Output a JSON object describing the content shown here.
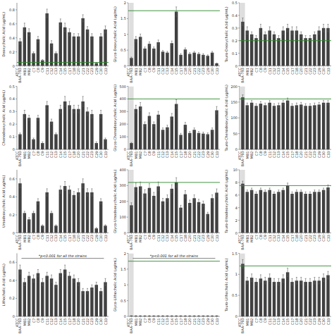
{
  "chart_data": [
    {
      "type": "bar",
      "y_label": "Deoxycholic Acid (µg/mL)",
      "grid": false,
      "color": "#404040",
      "error_color": "#606060",
      "categories": [
        "ATCC\nBAA-793",
        "MB1",
        "MB2",
        "C7",
        "C8",
        "C9",
        "C11",
        "C12",
        "C13",
        "C14",
        "C15",
        "C17",
        "C18",
        "C20",
        "C21",
        "C22",
        "C23",
        "C29",
        "C30",
        "C33"
      ],
      "values": [
        0.35,
        0.55,
        0.48,
        0.18,
        0.38,
        0.08,
        0.75,
        0.32,
        0.18,
        0.62,
        0.55,
        0.48,
        0.42,
        0.42,
        0.68,
        0.52,
        0.42,
        0.04,
        0.42,
        0.52
      ],
      "errors": [
        0.04,
        0.06,
        0.05,
        0.02,
        0.04,
        0.01,
        0.06,
        0.04,
        0.02,
        0.05,
        0.06,
        0.05,
        0.04,
        0.04,
        0.05,
        0.04,
        0.04,
        0.01,
        0.04,
        0.05
      ],
      "reference_line": {
        "value": 0.05,
        "color": "#2d8a2d"
      },
      "ylim": [
        0,
        0.9
      ],
      "yticks": [
        0,
        0.2,
        0.4,
        0.6,
        0.8
      ]
    },
    {
      "type": "bar",
      "y_label": "Glyco-Deoxycholic Acid (µg/mL)",
      "grid": false,
      "color": "#404040",
      "error_color": "#606060",
      "categories": [
        "ATCC\nBAA-793",
        "MB1",
        "MB2",
        "C7",
        "C8",
        "C9",
        "C11",
        "C12",
        "C13",
        "C14",
        "C15",
        "C17",
        "C18",
        "C20",
        "C21",
        "C22",
        "C23",
        "C29",
        "C30",
        "C33"
      ],
      "values": [
        0.25,
        0.85,
        0.92,
        0.55,
        0.7,
        0.55,
        0.75,
        0.45,
        0.42,
        0.72,
        1.72,
        0.35,
        0.52,
        0.38,
        0.42,
        0.38,
        0.35,
        0.32,
        0.42,
        0.08
      ],
      "errors": [
        0.03,
        0.08,
        0.09,
        0.05,
        0.06,
        0.05,
        0.07,
        0.04,
        0.04,
        0.07,
        0.15,
        0.04,
        0.05,
        0.04,
        0.04,
        0.04,
        0.04,
        0.03,
        0.04,
        0.01
      ],
      "reference_line": {
        "value": 1.75,
        "color": "#2d8a2d"
      },
      "shaded_category": {
        "category": "ATCC\nBAA-793",
        "color": "#d0d0d0"
      },
      "ylim": [
        0,
        2.0
      ],
      "yticks": [
        0,
        0.5,
        1,
        1.5,
        2
      ]
    },
    {
      "type": "bar",
      "y_label": "Tauro-Deoxycholic Acid (µg/mL)",
      "grid": false,
      "color": "#404040",
      "error_color": "#606060",
      "categories": [
        "ATCC\nBAA-793",
        "MB1",
        "MB2",
        "C7",
        "C8",
        "C9",
        "C11",
        "C12",
        "C13",
        "C14",
        "C15",
        "C17",
        "C18",
        "C20",
        "C21",
        "C22",
        "C23",
        "C29",
        "C30",
        "C33"
      ],
      "values": [
        0.35,
        0.28,
        0.25,
        0.22,
        0.3,
        0.25,
        0.28,
        0.25,
        0.22,
        0.28,
        0.3,
        0.28,
        0.28,
        0.25,
        0.22,
        0.22,
        0.25,
        0.28,
        0.3,
        0.3
      ],
      "errors": [
        0.03,
        0.03,
        0.02,
        0.02,
        0.03,
        0.02,
        0.03,
        0.02,
        0.02,
        0.03,
        0.03,
        0.03,
        0.03,
        0.02,
        0.02,
        0.02,
        0.02,
        0.03,
        0.03,
        0.03
      ],
      "reference_line": {
        "value": 0.2,
        "color": "#2d8a2d"
      },
      "shaded_category": {
        "category": "ATCC\nBAA-793",
        "color": "#d0d0d0"
      },
      "ylim": [
        0,
        0.5
      ],
      "yticks": [
        0,
        0.1,
        0.2,
        0.3,
        0.4,
        0.5
      ]
    },
    {
      "type": "bar",
      "y_label": "Chenodeoxycholic Acid (µg/mL)",
      "grid": false,
      "color": "#404040",
      "error_color": "#606060",
      "categories": [
        "ATCC\nBAA-793",
        "MB1",
        "MB2",
        "C7",
        "C8",
        "C9",
        "C11",
        "C12",
        "C13",
        "C14",
        "C15",
        "C17",
        "C18",
        "C20",
        "C21",
        "C22",
        "C23",
        "C29",
        "C30",
        "C33"
      ],
      "values": [
        0.12,
        0.28,
        0.25,
        0.08,
        0.25,
        0.05,
        0.35,
        0.22,
        0.12,
        0.32,
        0.38,
        0.35,
        0.32,
        0.32,
        0.38,
        0.3,
        0.28,
        0.05,
        0.28,
        0.08
      ],
      "errors": [
        0.01,
        0.03,
        0.02,
        0.01,
        0.02,
        0.01,
        0.03,
        0.02,
        0.01,
        0.03,
        0.04,
        0.03,
        0.03,
        0.03,
        0.04,
        0.03,
        0.03,
        0.01,
        0.03,
        0.01
      ],
      "ylim": [
        0,
        0.5
      ],
      "yticks": [
        0,
        0.1,
        0.2,
        0.3,
        0.4,
        0.5
      ]
    },
    {
      "type": "bar",
      "y_label": "Glyco-Chenodeoxycholic Acid (µg/mL)",
      "grid": false,
      "color": "#404040",
      "error_color": "#606060",
      "categories": [
        "ATCC\nBAA-793",
        "MB1",
        "MB2",
        "C7",
        "C8",
        "C9",
        "C11",
        "C12",
        "C13",
        "C14",
        "C15",
        "C17",
        "C18",
        "C20",
        "C21",
        "C22",
        "C23",
        "C29",
        "C30",
        "C33"
      ],
      "values": [
        50,
        320,
        340,
        200,
        265,
        200,
        275,
        155,
        175,
        260,
        360,
        115,
        195,
        130,
        155,
        130,
        125,
        120,
        155,
        310
      ],
      "errors": [
        5,
        30,
        32,
        18,
        25,
        18,
        26,
        15,
        17,
        25,
        34,
        12,
        19,
        12,
        15,
        12,
        12,
        11,
        15,
        30
      ],
      "reference_line": {
        "value": 400,
        "color": "#2d8a2d"
      },
      "shaded_category": {
        "category": "ATCC\nBAA-793",
        "color": "#d0d0d0"
      },
      "ylim": [
        0,
        500
      ],
      "yticks": [
        0,
        100,
        200,
        300,
        400,
        500
      ]
    },
    {
      "type": "bar",
      "y_label": "Tauro-Chenodeoxycholic Acid (µg/mL)",
      "grid": false,
      "color": "#404040",
      "error_color": "#606060",
      "categories": [
        "ATCC\nBAA-793",
        "MB1",
        "MB2",
        "C7",
        "C8",
        "C9",
        "C11",
        "C12",
        "C13",
        "C14",
        "C15",
        "C17",
        "C18",
        "C20",
        "C21",
        "C22",
        "C23",
        "C29",
        "C30",
        "C33"
      ],
      "values": [
        165,
        140,
        148,
        138,
        145,
        140,
        148,
        138,
        140,
        148,
        155,
        138,
        140,
        142,
        138,
        138,
        140,
        142,
        148,
        148
      ],
      "errors": [
        8,
        7,
        7,
        7,
        7,
        7,
        7,
        7,
        7,
        7,
        8,
        7,
        7,
        7,
        7,
        7,
        7,
        7,
        7,
        7
      ],
      "reference_line": {
        "value": 160,
        "color": "#2d8a2d"
      },
      "shaded_category": {
        "category": "ATCC\nBAA-793",
        "color": "#d0d0d0"
      },
      "ylim": [
        0,
        200
      ],
      "yticks": [
        0,
        50,
        100,
        150,
        200
      ]
    },
    {
      "type": "bar",
      "y_label": "Ursodeoxycholic Acid (µg/mL)",
      "grid": false,
      "color": "#404040",
      "error_color": "#606060",
      "categories": [
        "ATCC\nBAA-793",
        "MB1",
        "MB2",
        "C7",
        "C8",
        "C9",
        "C11",
        "C12",
        "C13",
        "C14",
        "C15",
        "C17",
        "C18",
        "C20",
        "C21",
        "C22",
        "C23",
        "C29",
        "C30",
        "C33"
      ],
      "values": [
        0.55,
        0.22,
        0.15,
        0.22,
        0.35,
        0.08,
        0.45,
        0.22,
        0.08,
        0.48,
        0.52,
        0.48,
        0.42,
        0.45,
        0.55,
        0.45,
        0.45,
        0.05,
        0.35,
        0.08
      ],
      "errors": [
        0.05,
        0.02,
        0.02,
        0.02,
        0.03,
        0.01,
        0.04,
        0.02,
        0.01,
        0.04,
        0.05,
        0.04,
        0.04,
        0.04,
        0.05,
        0.04,
        0.04,
        0.01,
        0.03,
        0.01
      ],
      "ylim": [
        0,
        0.7
      ],
      "yticks": [
        0,
        0.2,
        0.4,
        0.6
      ]
    },
    {
      "type": "bar",
      "y_label": "Glyco-Ursodeoxycholic Acid (µg/mL)",
      "grid": false,
      "color": "#404040",
      "error_color": "#606060",
      "categories": [
        "ATCC\nBAA-793",
        "MB1",
        "MB2",
        "C7",
        "C8",
        "C9",
        "C11",
        "C12",
        "C13",
        "C14",
        "C15",
        "C17",
        "C18",
        "C20",
        "C21",
        "C22",
        "C23",
        "C29",
        "C30",
        "C33"
      ],
      "values": [
        175,
        290,
        295,
        250,
        285,
        235,
        295,
        200,
        220,
        280,
        320,
        160,
        245,
        190,
        220,
        195,
        185,
        120,
        220,
        255
      ],
      "errors": [
        16,
        27,
        28,
        24,
        27,
        22,
        28,
        19,
        21,
        26,
        30,
        15,
        23,
        18,
        21,
        18,
        17,
        11,
        21,
        24
      ],
      "reference_line": {
        "value": 320,
        "color": "#2d8a2d"
      },
      "shaded_category": {
        "category": "ATCC\nBAA-793",
        "color": "#d0d0d0"
      },
      "ylim": [
        0,
        400
      ],
      "yticks": [
        0,
        100,
        200,
        300,
        400
      ]
    },
    {
      "type": "bar",
      "y_label": "Tauro-Ursodeoxycholic Acid (µg/mL)",
      "grid": false,
      "color": "#404040",
      "error_color": "#606060",
      "categories": [
        "ATCC\nBAA-793",
        "MB1",
        "MB2",
        "C7",
        "C8",
        "C9",
        "C11",
        "C12",
        "C13",
        "C14",
        "C15",
        "C17",
        "C18",
        "C20",
        "C21",
        "C22",
        "C23",
        "C29",
        "C30",
        "C33"
      ],
      "values": [
        7.8,
        6.5,
        6.8,
        6.2,
        6.8,
        6.5,
        6.8,
        6.2,
        6.5,
        6.8,
        7.5,
        6.2,
        6.5,
        6.5,
        6.2,
        6.2,
        6.5,
        6.5,
        6.8,
        7.2
      ],
      "errors": [
        0.4,
        0.3,
        0.3,
        0.3,
        0.3,
        0.3,
        0.3,
        0.3,
        0.3,
        0.3,
        0.4,
        0.3,
        0.3,
        0.3,
        0.3,
        0.3,
        0.3,
        0.3,
        0.3,
        0.4
      ],
      "reference_line": {
        "value": 7.5,
        "color": "#2d8a2d"
      },
      "shaded_category": {
        "category": "ATCC\nBAA-793",
        "color": "#d0d0d0"
      },
      "ylim": [
        0,
        10
      ],
      "yticks": [
        0,
        2,
        4,
        6,
        8,
        10
      ]
    },
    {
      "type": "bar",
      "y_label": "Lithocholic Acid (µg/mL)",
      "grid": false,
      "color": "#404040",
      "error_color": "#606060",
      "annotation": "*p<0.001 for all the strains",
      "categories": [
        "ATCC\nBAA-793",
        "MB1",
        "MB2",
        "C7",
        "C8",
        "C9",
        "C11",
        "C12",
        "C13",
        "C14",
        "C15",
        "C17",
        "C18",
        "C20",
        "C21",
        "C22",
        "C23",
        "C29",
        "C30",
        "C33"
      ],
      "values": [
        0.52,
        0.38,
        0.45,
        0.42,
        0.48,
        0.38,
        0.45,
        0.42,
        0.35,
        0.48,
        0.52,
        0.45,
        0.42,
        0.38,
        0.28,
        0.28,
        0.32,
        0.35,
        0.28,
        0.38
      ],
      "errors": [
        0.05,
        0.04,
        0.04,
        0.04,
        0.04,
        0.04,
        0.04,
        0.04,
        0.03,
        0.04,
        0.05,
        0.04,
        0.04,
        0.04,
        0.03,
        0.03,
        0.03,
        0.03,
        0.03,
        0.04
      ],
      "ylim": [
        0,
        0.7
      ],
      "yticks": [
        0,
        0.2,
        0.4,
        0.6
      ]
    },
    {
      "type": "bar",
      "y_label": "Glyco-Lithocholic Acid (µg/mL)",
      "grid": false,
      "color": "#404040",
      "error_color": "#606060",
      "annotation": "*p<0.001 for all the strains",
      "categories": [
        "ATCC\nBAA-793",
        "MB1",
        "MB2",
        "C7",
        "C8",
        "C9",
        "C11",
        "C12",
        "C13",
        "C14",
        "C15",
        "C17",
        "C18",
        "C20",
        "C21",
        "C22",
        "C23",
        "C29",
        "C30",
        "C33"
      ],
      "values": [
        0.02,
        0.02,
        0.02,
        0.02,
        0.02,
        0.02,
        0.02,
        0.02,
        0.02,
        0.02,
        0.02,
        0.02,
        0.02,
        0.02,
        0.02,
        0.02,
        0.02,
        0.02,
        0.02,
        0.02
      ],
      "errors": [
        0.002,
        0.002,
        0.002,
        0.002,
        0.002,
        0.002,
        0.002,
        0.002,
        0.002,
        0.002,
        0.002,
        0.002,
        0.002,
        0.002,
        0.002,
        0.002,
        0.002,
        0.002,
        0.002,
        0.002
      ],
      "reference_line": {
        "value": 1.75,
        "color": "#2d8a2d"
      },
      "shaded_category": {
        "category": "ATCC\nBAA-793",
        "color": "#d0d0d0"
      },
      "ylim": [
        0,
        2.0
      ],
      "yticks": [
        0,
        0.5,
        1,
        1.5,
        2
      ]
    },
    {
      "type": "bar",
      "y_label": "Tauro-Lithocholic Acid (µg/mL)",
      "grid": false,
      "color": "#404040",
      "error_color": "#606060",
      "categories": [
        "ATCC\nBAA-793",
        "MB1",
        "MB2",
        "C7",
        "C8",
        "C9",
        "C11",
        "C12",
        "C13",
        "C14",
        "C15",
        "C17",
        "C18",
        "C20",
        "C21",
        "C22",
        "C23",
        "C29",
        "C30",
        "C33"
      ],
      "values": [
        1.25,
        0.85,
        0.92,
        0.82,
        0.9,
        0.85,
        0.92,
        0.82,
        0.82,
        0.9,
        1.05,
        0.82,
        0.85,
        0.85,
        0.82,
        0.82,
        0.85,
        0.85,
        0.92,
        0.98
      ],
      "errors": [
        0.1,
        0.08,
        0.09,
        0.08,
        0.09,
        0.08,
        0.09,
        0.08,
        0.08,
        0.09,
        0.1,
        0.08,
        0.08,
        0.08,
        0.08,
        0.08,
        0.08,
        0.08,
        0.09,
        0.09
      ],
      "reference_line": {
        "value": 1.2,
        "color": "#2d8a2d"
      },
      "shaded_category": {
        "category": "ATCC\nBAA-793",
        "color": "#d0d0d0"
      },
      "ylim": [
        0,
        1.5
      ],
      "yticks": [
        0,
        0.5,
        1,
        1.5
      ]
    }
  ]
}
